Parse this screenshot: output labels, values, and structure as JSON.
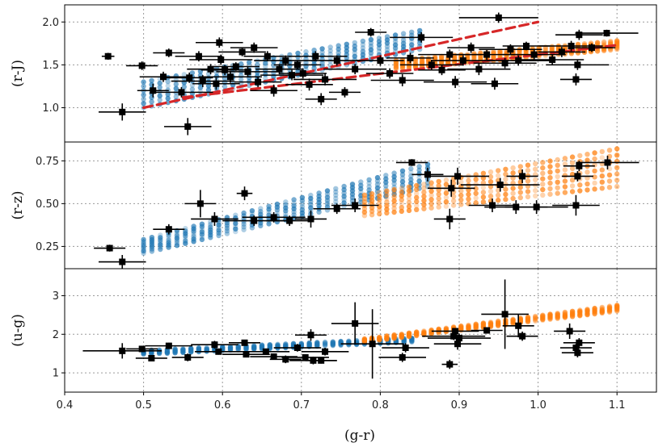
{
  "chart_data": {
    "type": "scatter",
    "xlabel": "(g-r)",
    "xlim": [
      0.4,
      1.15
    ],
    "x_ticks": [
      "0.4",
      "0.5",
      "0.6",
      "0.7",
      "0.8",
      "0.9",
      "1.0",
      "1.1"
    ],
    "x_tick_values": [
      0.4,
      0.5,
      0.6,
      0.7,
      0.8,
      0.9,
      1.0,
      1.1
    ],
    "colors": {
      "blue_model": "#1f77b4",
      "orange_model": "#ff7f0e",
      "fit_line": "#d62728",
      "observed": "#000000"
    },
    "panels": [
      {
        "id": "r-J",
        "ylabel": "(r-J)",
        "ylim": [
          0.6,
          2.2
        ],
        "y_ticks": [
          "1.0",
          "1.5",
          "2.0"
        ],
        "y_tick_values": [
          1.0,
          1.5,
          2.0
        ],
        "blue_model": {
          "x_range": [
            0.5,
            0.85
          ],
          "y_start": [
            1.0,
            1.3
          ],
          "y_end": [
            1.68,
            1.9
          ]
        },
        "orange_model": {
          "x_range": [
            0.82,
            1.1
          ],
          "y_start": [
            1.45,
            1.55
          ],
          "y_end": [
            1.68,
            1.78
          ]
        },
        "fit_lines": [
          {
            "x": [
              0.5,
              1.0
            ],
            "y": [
              1.0,
              2.0
            ]
          },
          {
            "x": [
              0.55,
              1.1
            ],
            "y": [
              1.12,
              1.73
            ]
          }
        ],
        "observed": [
          {
            "x": 0.455,
            "y": 1.6,
            "xerr": 0.008,
            "yerr": 0.04
          },
          {
            "x": 0.473,
            "y": 0.95,
            "xerr": 0.03,
            "yerr": 0.1
          },
          {
            "x": 0.498,
            "y": 1.49,
            "xerr": 0.02,
            "yerr": 0.05
          },
          {
            "x": 0.512,
            "y": 1.2,
            "xerr": 0.02,
            "yerr": 0.08
          },
          {
            "x": 0.525,
            "y": 1.36,
            "xerr": 0.03,
            "yerr": 0.06
          },
          {
            "x": 0.532,
            "y": 1.64,
            "xerr": 0.02,
            "yerr": 0.05
          },
          {
            "x": 0.548,
            "y": 1.18,
            "xerr": 0.04,
            "yerr": 0.06
          },
          {
            "x": 0.556,
            "y": 0.78,
            "xerr": 0.03,
            "yerr": 0.1
          },
          {
            "x": 0.558,
            "y": 1.35,
            "xerr": 0.03,
            "yerr": 0.06
          },
          {
            "x": 0.57,
            "y": 1.6,
            "xerr": 0.03,
            "yerr": 0.06
          },
          {
            "x": 0.575,
            "y": 1.31,
            "xerr": 0.04,
            "yerr": 0.07
          },
          {
            "x": 0.585,
            "y": 1.45,
            "xerr": 0.03,
            "yerr": 0.06
          },
          {
            "x": 0.592,
            "y": 1.28,
            "xerr": 0.03,
            "yerr": 0.07
          },
          {
            "x": 0.596,
            "y": 1.76,
            "xerr": 0.03,
            "yerr": 0.06
          },
          {
            "x": 0.598,
            "y": 1.56,
            "xerr": 0.04,
            "yerr": 0.06
          },
          {
            "x": 0.603,
            "y": 1.44,
            "xerr": 0.03,
            "yerr": 0.06
          },
          {
            "x": 0.61,
            "y": 1.36,
            "xerr": 0.04,
            "yerr": 0.07
          },
          {
            "x": 0.617,
            "y": 1.48,
            "xerr": 0.03,
            "yerr": 0.05
          },
          {
            "x": 0.625,
            "y": 1.65,
            "xerr": 0.03,
            "yerr": 0.05
          },
          {
            "x": 0.632,
            "y": 1.42,
            "xerr": 0.04,
            "yerr": 0.06
          },
          {
            "x": 0.64,
            "y": 1.7,
            "xerr": 0.03,
            "yerr": 0.06
          },
          {
            "x": 0.645,
            "y": 1.3,
            "xerr": 0.03,
            "yerr": 0.06
          },
          {
            "x": 0.657,
            "y": 1.6,
            "xerr": 0.03,
            "yerr": 0.06
          },
          {
            "x": 0.665,
            "y": 1.2,
            "xerr": 0.03,
            "yerr": 0.07
          },
          {
            "x": 0.672,
            "y": 1.45,
            "xerr": 0.03,
            "yerr": 0.06
          },
          {
            "x": 0.68,
            "y": 1.55,
            "xerr": 0.04,
            "yerr": 0.06
          },
          {
            "x": 0.688,
            "y": 1.38,
            "xerr": 0.04,
            "yerr": 0.06
          },
          {
            "x": 0.695,
            "y": 1.5,
            "xerr": 0.03,
            "yerr": 0.05
          },
          {
            "x": 0.702,
            "y": 1.4,
            "xerr": 0.03,
            "yerr": 0.06
          },
          {
            "x": 0.71,
            "y": 1.27,
            "xerr": 0.03,
            "yerr": 0.07
          },
          {
            "x": 0.718,
            "y": 1.6,
            "xerr": 0.04,
            "yerr": 0.06
          },
          {
            "x": 0.725,
            "y": 1.1,
            "xerr": 0.02,
            "yerr": 0.07
          },
          {
            "x": 0.73,
            "y": 1.33,
            "xerr": 0.04,
            "yerr": 0.07
          },
          {
            "x": 0.745,
            "y": 1.55,
            "xerr": 0.03,
            "yerr": 0.06
          },
          {
            "x": 0.755,
            "y": 1.18,
            "xerr": 0.02,
            "yerr": 0.06
          },
          {
            "x": 0.768,
            "y": 1.45,
            "xerr": 0.04,
            "yerr": 0.06
          },
          {
            "x": 0.788,
            "y": 1.88,
            "xerr": 0.02,
            "yerr": 0.05
          },
          {
            "x": 0.8,
            "y": 1.55,
            "xerr": 0.03,
            "yerr": 0.06
          },
          {
            "x": 0.812,
            "y": 1.4,
            "xerr": 0.03,
            "yerr": 0.06
          },
          {
            "x": 0.828,
            "y": 1.32,
            "xerr": 0.04,
            "yerr": 0.07
          },
          {
            "x": 0.838,
            "y": 1.58,
            "xerr": 0.03,
            "yerr": 0.06
          },
          {
            "x": 0.852,
            "y": 1.82,
            "xerr": 0.04,
            "yerr": 0.06
          },
          {
            "x": 0.865,
            "y": 1.5,
            "xerr": 0.04,
            "yerr": 0.06
          },
          {
            "x": 0.878,
            "y": 1.44,
            "xerr": 0.03,
            "yerr": 0.06
          },
          {
            "x": 0.888,
            "y": 1.62,
            "xerr": 0.04,
            "yerr": 0.06
          },
          {
            "x": 0.895,
            "y": 1.3,
            "xerr": 0.04,
            "yerr": 0.07
          },
          {
            "x": 0.905,
            "y": 1.55,
            "xerr": 0.04,
            "yerr": 0.06
          },
          {
            "x": 0.915,
            "y": 1.7,
            "xerr": 0.03,
            "yerr": 0.06
          },
          {
            "x": 0.925,
            "y": 1.45,
            "xerr": 0.04,
            "yerr": 0.07
          },
          {
            "x": 0.935,
            "y": 1.62,
            "xerr": 0.04,
            "yerr": 0.06
          },
          {
            "x": 0.945,
            "y": 1.28,
            "xerr": 0.03,
            "yerr": 0.07
          },
          {
            "x": 0.95,
            "y": 2.05,
            "xerr": 0.05,
            "yerr": 0.06
          },
          {
            "x": 0.958,
            "y": 1.52,
            "xerr": 0.04,
            "yerr": 0.06
          },
          {
            "x": 0.965,
            "y": 1.68,
            "xerr": 0.04,
            "yerr": 0.06
          },
          {
            "x": 0.975,
            "y": 1.55,
            "xerr": 0.04,
            "yerr": 0.06
          },
          {
            "x": 0.985,
            "y": 1.72,
            "xerr": 0.03,
            "yerr": 0.05
          },
          {
            "x": 0.995,
            "y": 1.62,
            "xerr": 0.04,
            "yerr": 0.06
          },
          {
            "x": 1.018,
            "y": 1.56,
            "xerr": 0.04,
            "yerr": 0.06
          },
          {
            "x": 1.03,
            "y": 1.65,
            "xerr": 0.03,
            "yerr": 0.06
          },
          {
            "x": 1.042,
            "y": 1.72,
            "xerr": 0.04,
            "yerr": 0.06
          },
          {
            "x": 1.048,
            "y": 1.33,
            "xerr": 0.02,
            "yerr": 0.07
          },
          {
            "x": 1.05,
            "y": 1.5,
            "xerr": 0.04,
            "yerr": 0.06
          },
          {
            "x": 1.052,
            "y": 1.85,
            "xerr": 0.03,
            "yerr": 0.06
          },
          {
            "x": 1.068,
            "y": 1.7,
            "xerr": 0.03,
            "yerr": 0.05
          },
          {
            "x": 1.087,
            "y": 1.87,
            "xerr": 0.04,
            "yerr": 0.04
          }
        ]
      },
      {
        "id": "r-z",
        "ylabel": "(r-z)",
        "ylim": [
          0.12,
          0.86
        ],
        "y_ticks": [
          "0.25",
          "0.50",
          "0.75"
        ],
        "y_tick_values": [
          0.25,
          0.5,
          0.75
        ],
        "blue_model": {
          "x_range": [
            0.5,
            0.86
          ],
          "y_start": [
            0.21,
            0.29
          ],
          "y_end": [
            0.6,
            0.73
          ]
        },
        "orange_model": {
          "x_range": [
            0.78,
            1.1
          ],
          "y_start": [
            0.43,
            0.55
          ],
          "y_end": [
            0.6,
            0.82
          ]
        },
        "fit_lines": [],
        "observed": [
          {
            "x": 0.457,
            "y": 0.24,
            "xerr": 0.02,
            "yerr": 0.02
          },
          {
            "x": 0.473,
            "y": 0.16,
            "xerr": 0.03,
            "yerr": 0.04
          },
          {
            "x": 0.532,
            "y": 0.35,
            "xerr": 0.02,
            "yerr": 0.03
          },
          {
            "x": 0.572,
            "y": 0.5,
            "xerr": 0.02,
            "yerr": 0.08
          },
          {
            "x": 0.59,
            "y": 0.41,
            "xerr": 0.03,
            "yerr": 0.04
          },
          {
            "x": 0.628,
            "y": 0.56,
            "xerr": 0.01,
            "yerr": 0.04
          },
          {
            "x": 0.64,
            "y": 0.4,
            "xerr": 0.04,
            "yerr": 0.03
          },
          {
            "x": 0.665,
            "y": 0.42,
            "xerr": 0.04,
            "yerr": 0.03
          },
          {
            "x": 0.685,
            "y": 0.4,
            "xerr": 0.03,
            "yerr": 0.03
          },
          {
            "x": 0.712,
            "y": 0.41,
            "xerr": 0.02,
            "yerr": 0.05
          },
          {
            "x": 0.745,
            "y": 0.47,
            "xerr": 0.03,
            "yerr": 0.03
          },
          {
            "x": 0.768,
            "y": 0.49,
            "xerr": 0.03,
            "yerr": 0.04
          },
          {
            "x": 0.84,
            "y": 0.74,
            "xerr": 0.02,
            "yerr": 0.02
          },
          {
            "x": 0.86,
            "y": 0.67,
            "xerr": 0.02,
            "yerr": 0.04
          },
          {
            "x": 0.888,
            "y": 0.41,
            "xerr": 0.02,
            "yerr": 0.06
          },
          {
            "x": 0.89,
            "y": 0.59,
            "xerr": 0.03,
            "yerr": 0.05
          },
          {
            "x": 0.898,
            "y": 0.66,
            "xerr": 0.04,
            "yerr": 0.05
          },
          {
            "x": 0.942,
            "y": 0.49,
            "xerr": 0.03,
            "yerr": 0.04
          },
          {
            "x": 0.952,
            "y": 0.61,
            "xerr": 0.05,
            "yerr": 0.04
          },
          {
            "x": 0.972,
            "y": 0.48,
            "xerr": 0.04,
            "yerr": 0.04
          },
          {
            "x": 0.98,
            "y": 0.66,
            "xerr": 0.02,
            "yerr": 0.04
          },
          {
            "x": 0.998,
            "y": 0.48,
            "xerr": 0.04,
            "yerr": 0.04
          },
          {
            "x": 1.048,
            "y": 0.49,
            "xerr": 0.03,
            "yerr": 0.06
          },
          {
            "x": 1.05,
            "y": 0.66,
            "xerr": 0.02,
            "yerr": 0.03
          },
          {
            "x": 1.052,
            "y": 0.72,
            "xerr": 0.02,
            "yerr": 0.03
          },
          {
            "x": 1.088,
            "y": 0.74,
            "xerr": 0.04,
            "yerr": 0.04
          }
        ]
      },
      {
        "id": "u-g",
        "ylabel": "(u-g)",
        "ylim": [
          0.5,
          3.7
        ],
        "y_ticks": [
          "1",
          "2",
          "3"
        ],
        "y_tick_values": [
          1,
          2,
          3
        ],
        "blue_model": {
          "x_range": [
            0.5,
            0.84
          ],
          "y_start": [
            1.48,
            1.58
          ],
          "y_end": [
            1.8,
            1.9
          ]
        },
        "orange_model": {
          "x_range": [
            0.78,
            1.1
          ],
          "y_start": [
            1.8,
            1.88
          ],
          "y_end": [
            2.6,
            2.75
          ]
        },
        "fit_lines": [],
        "observed": [
          {
            "x": 0.473,
            "y": 1.57,
            "xerr": 0.05,
            "yerr": 0.2
          },
          {
            "x": 0.498,
            "y": 1.62,
            "xerr": 0.02,
            "yerr": 0.05
          },
          {
            "x": 0.51,
            "y": 1.38,
            "xerr": 0.02,
            "yerr": 0.05
          },
          {
            "x": 0.532,
            "y": 1.7,
            "xerr": 0.03,
            "yerr": 0.08
          },
          {
            "x": 0.556,
            "y": 1.4,
            "xerr": 0.02,
            "yerr": 0.1
          },
          {
            "x": 0.59,
            "y": 1.73,
            "xerr": 0.03,
            "yerr": 0.1
          },
          {
            "x": 0.595,
            "y": 1.55,
            "xerr": 0.03,
            "yerr": 0.08
          },
          {
            "x": 0.628,
            "y": 1.78,
            "xerr": 0.02,
            "yerr": 0.06
          },
          {
            "x": 0.63,
            "y": 1.48,
            "xerr": 0.03,
            "yerr": 0.08
          },
          {
            "x": 0.655,
            "y": 1.55,
            "xerr": 0.03,
            "yerr": 0.07
          },
          {
            "x": 0.665,
            "y": 1.42,
            "xerr": 0.03,
            "yerr": 0.08
          },
          {
            "x": 0.68,
            "y": 1.35,
            "xerr": 0.02,
            "yerr": 0.1
          },
          {
            "x": 0.695,
            "y": 1.65,
            "xerr": 0.03,
            "yerr": 0.1
          },
          {
            "x": 0.705,
            "y": 1.4,
            "xerr": 0.03,
            "yerr": 0.08
          },
          {
            "x": 0.712,
            "y": 1.98,
            "xerr": 0.02,
            "yerr": 0.15
          },
          {
            "x": 0.715,
            "y": 1.32,
            "xerr": 0.03,
            "yerr": 0.1
          },
          {
            "x": 0.725,
            "y": 1.32,
            "xerr": 0.02,
            "yerr": 0.08
          },
          {
            "x": 0.73,
            "y": 1.55,
            "xerr": 0.03,
            "yerr": 0.1
          },
          {
            "x": 0.768,
            "y": 2.28,
            "xerr": 0.03,
            "yerr": 0.55
          },
          {
            "x": 0.79,
            "y": 1.75,
            "xerr": 0.04,
            "yerr": 0.9
          },
          {
            "x": 0.828,
            "y": 1.4,
            "xerr": 0.03,
            "yerr": 0.12
          },
          {
            "x": 0.832,
            "y": 1.65,
            "xerr": 0.03,
            "yerr": 0.12
          },
          {
            "x": 0.888,
            "y": 1.22,
            "xerr": 0.01,
            "yerr": 0.12
          },
          {
            "x": 0.893,
            "y": 1.95,
            "xerr": 0.04,
            "yerr": 0.1
          },
          {
            "x": 0.895,
            "y": 2.08,
            "xerr": 0.03,
            "yerr": 0.08
          },
          {
            "x": 0.898,
            "y": 1.75,
            "xerr": 0.03,
            "yerr": 0.15
          },
          {
            "x": 0.9,
            "y": 1.9,
            "xerr": 0.04,
            "yerr": 0.12
          },
          {
            "x": 0.935,
            "y": 2.1,
            "xerr": 0.02,
            "yerr": 0.08
          },
          {
            "x": 0.958,
            "y": 2.52,
            "xerr": 0.03,
            "yerr": 0.9
          },
          {
            "x": 0.975,
            "y": 2.22,
            "xerr": 0.02,
            "yerr": 0.3
          },
          {
            "x": 0.98,
            "y": 1.95,
            "xerr": 0.02,
            "yerr": 0.12
          },
          {
            "x": 1.04,
            "y": 2.08,
            "xerr": 0.02,
            "yerr": 0.2
          },
          {
            "x": 1.048,
            "y": 1.65,
            "xerr": 0.02,
            "yerr": 0.1
          },
          {
            "x": 1.05,
            "y": 1.52,
            "xerr": 0.02,
            "yerr": 0.12
          },
          {
            "x": 1.052,
            "y": 1.78,
            "xerr": 0.02,
            "yerr": 0.12
          }
        ]
      }
    ]
  }
}
